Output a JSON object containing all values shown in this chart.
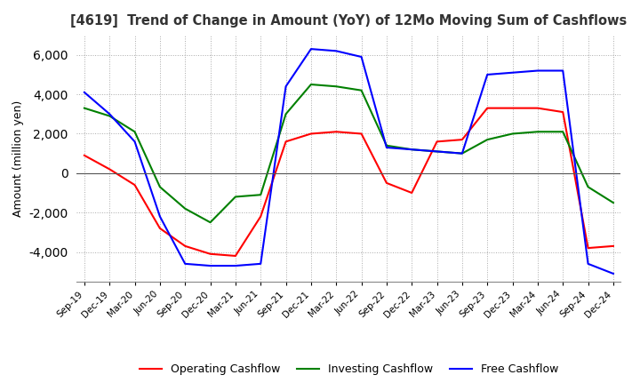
{
  "title": "[4619]  Trend of Change in Amount (YoY) of 12Mo Moving Sum of Cashflows",
  "ylabel": "Amount (million yen)",
  "x_labels": [
    "Sep-19",
    "Dec-19",
    "Mar-20",
    "Jun-20",
    "Sep-20",
    "Dec-20",
    "Mar-21",
    "Jun-21",
    "Sep-21",
    "Dec-21",
    "Mar-22",
    "Jun-22",
    "Sep-22",
    "Dec-22",
    "Mar-23",
    "Jun-23",
    "Sep-23",
    "Dec-23",
    "Mar-24",
    "Jun-24",
    "Sep-24",
    "Dec-24"
  ],
  "operating": [
    900,
    200,
    -600,
    -2800,
    -3700,
    -4100,
    -4200,
    -2200,
    1600,
    2000,
    2100,
    2000,
    -500,
    -1000,
    1600,
    1700,
    3300,
    3300,
    3300,
    3100,
    -3800,
    -3700
  ],
  "investing": [
    3300,
    2900,
    2100,
    -700,
    -1800,
    -2500,
    -1200,
    -1100,
    3000,
    4500,
    4400,
    4200,
    1400,
    1200,
    1100,
    1000,
    1700,
    2000,
    2100,
    2100,
    -700,
    -1500
  ],
  "free": [
    4100,
    3000,
    1600,
    -2200,
    -4600,
    -4700,
    -4700,
    -4600,
    4400,
    6300,
    6200,
    5900,
    1300,
    1200,
    1100,
    1000,
    5000,
    5100,
    5200,
    5200,
    -4600,
    -5100
  ],
  "operating_color": "#ff0000",
  "investing_color": "#008000",
  "free_color": "#0000ff",
  "ylim": [
    -5500,
    7000
  ],
  "yticks": [
    -4000,
    -2000,
    0,
    2000,
    4000,
    6000
  ],
  "background_color": "#ffffff",
  "grid_color": "#aaaaaa"
}
